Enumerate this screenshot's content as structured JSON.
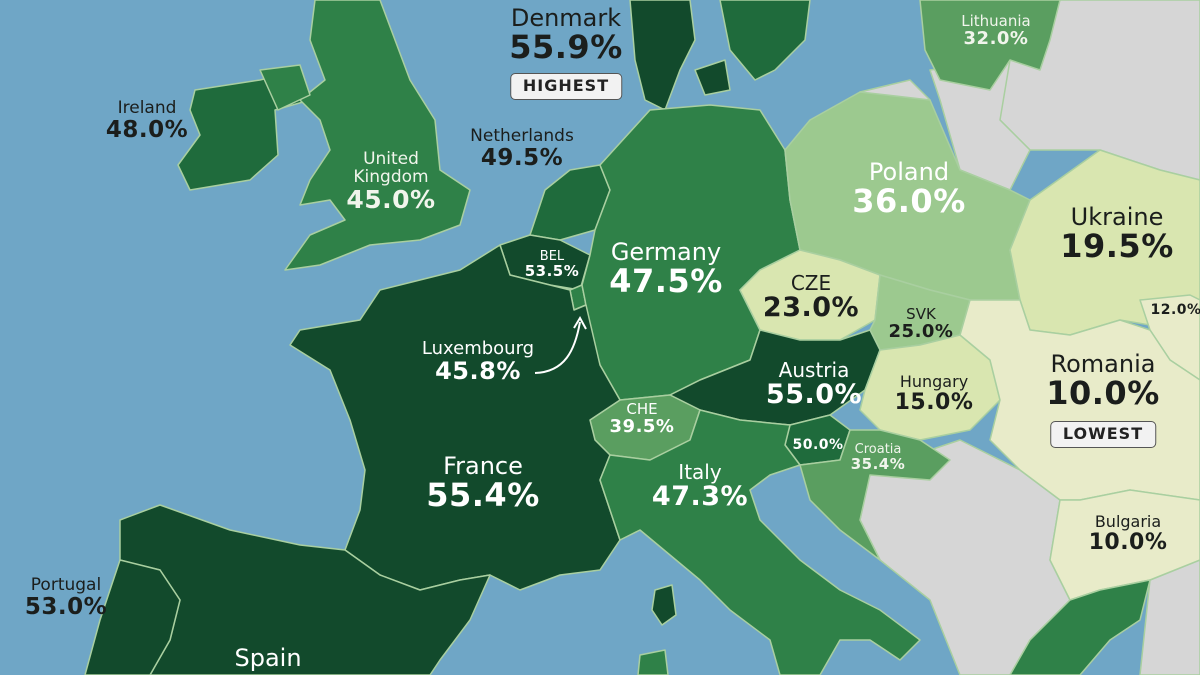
{
  "colors": {
    "sea": "#6fa6c6",
    "darkest": "#124a2c",
    "dark": "#1f6b3c",
    "medium": "#2f8148",
    "mid_light": "#5a9e60",
    "light": "#9cc98f",
    "pale": "#d9e6b0",
    "paler": "#e8ebc9",
    "no_data": "#d6d6d6",
    "border": "#a9cfa0"
  },
  "countries": {
    "denmark": {
      "name": "Denmark",
      "value": "55.9%",
      "badge": "HIGHEST"
    },
    "lithuania": {
      "name": "Lithuania",
      "value": "32.0%"
    },
    "ireland": {
      "name": "Ireland",
      "value": "48.0%"
    },
    "netherlands": {
      "name": "Netherlands",
      "value": "49.5%"
    },
    "uk": {
      "name": "United Kingdom",
      "value": "45.0%"
    },
    "poland": {
      "name": "Poland",
      "value": "36.0%"
    },
    "ukraine": {
      "name": "Ukraine",
      "value": "19.5%"
    },
    "belgium": {
      "name": "BEL",
      "value": "53.5%"
    },
    "germany": {
      "name": "Germany",
      "value": "47.5%"
    },
    "czechia": {
      "name": "CZE",
      "value": "23.0%"
    },
    "slovakia": {
      "name": "SVK",
      "value": "25.0%"
    },
    "moldova": {
      "value": "12.0%"
    },
    "luxembourg": {
      "name": "Luxembourg",
      "value": "45.8%"
    },
    "austria": {
      "name": "Austria",
      "value": "55.0%"
    },
    "hungary": {
      "name": "Hungary",
      "value": "15.0%"
    },
    "romania": {
      "name": "Romania",
      "value": "10.0%",
      "badge": "LOWEST"
    },
    "switzerland": {
      "name": "CHE",
      "value": "39.5%"
    },
    "slovenia": {
      "value": "50.0%"
    },
    "croatia": {
      "name": "Croatia",
      "value": "35.4%"
    },
    "france": {
      "name": "France",
      "value": "55.4%"
    },
    "italy": {
      "name": "Italy",
      "value": "47.3%"
    },
    "bulgaria": {
      "name": "Bulgaria",
      "value": "10.0%"
    },
    "portugal": {
      "name": "Portugal",
      "value": "53.0%"
    },
    "spain": {
      "name": "Spain"
    }
  }
}
